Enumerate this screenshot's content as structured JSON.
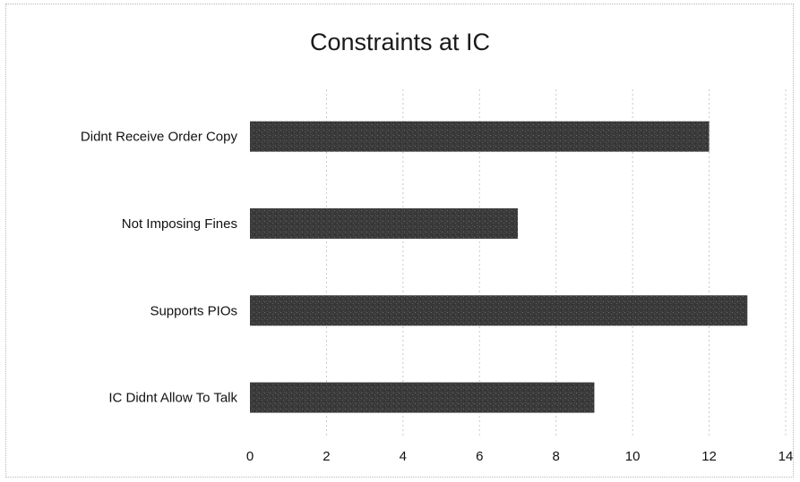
{
  "chart_data": {
    "type": "bar",
    "orientation": "horizontal",
    "title": "Constraints at IC",
    "categories": [
      "Didnt Receive Order Copy",
      "Not Imposing Fines",
      "Supports PIOs",
      "IC Didnt Allow To Talk"
    ],
    "values": [
      12,
      7,
      13,
      9
    ],
    "xlim": [
      0,
      14
    ],
    "xticks": [
      "0",
      "2",
      "4",
      "6",
      "8",
      "10",
      "12",
      "14"
    ],
    "grid": true,
    "legend": "none",
    "bar_color": "#3a3a3a",
    "grid_color": "#c8c8c8"
  }
}
